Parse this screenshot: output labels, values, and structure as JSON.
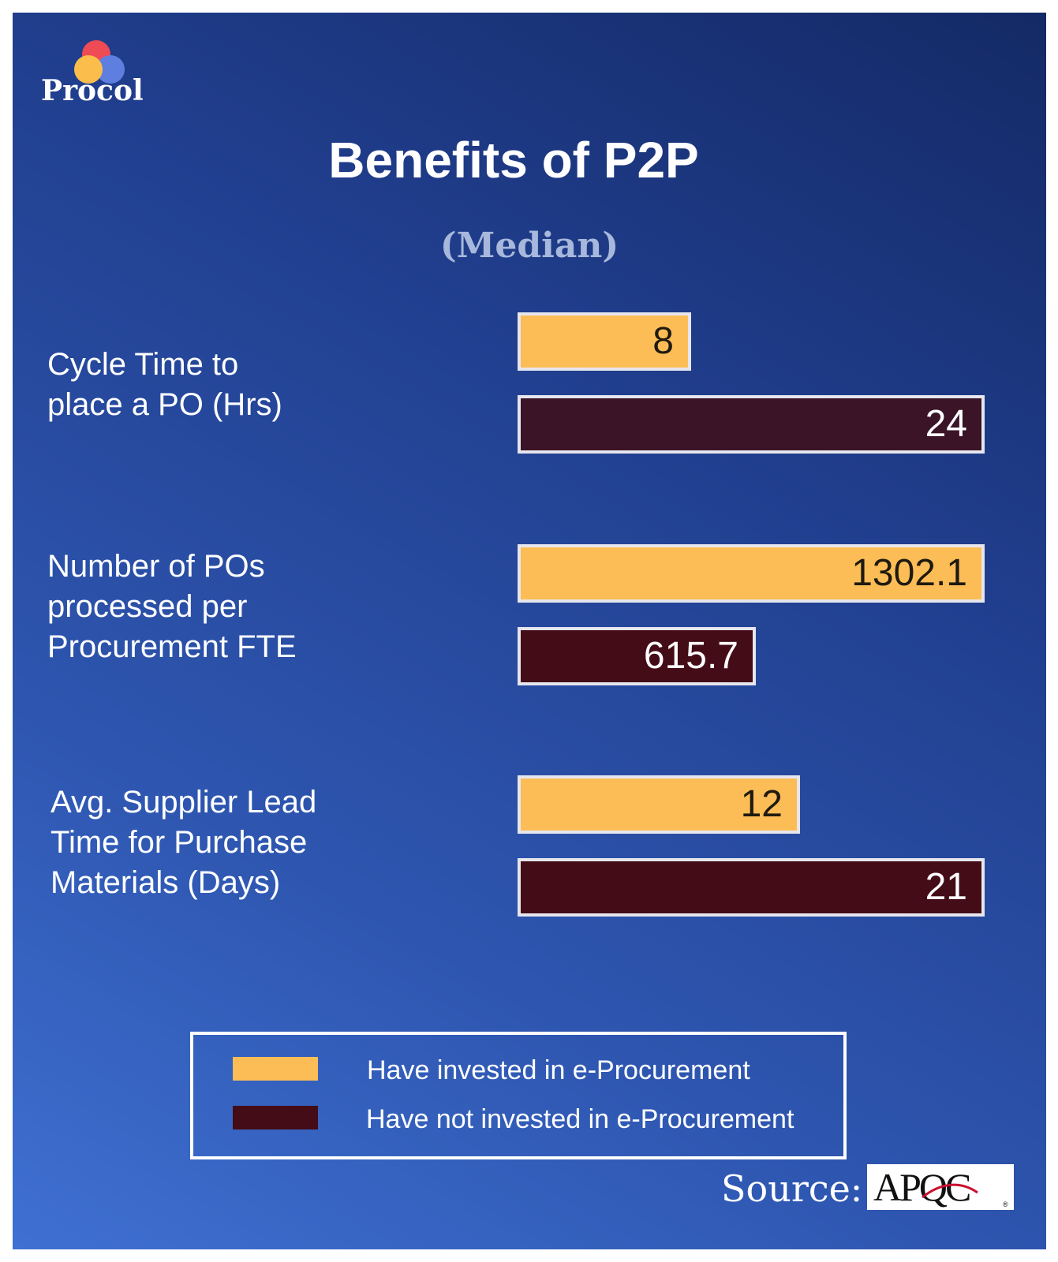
{
  "brand": {
    "name": "Procol"
  },
  "chart_data": {
    "type": "bar",
    "orientation": "horizontal",
    "title": "Benefits of P2P",
    "subtitle": "(Median)",
    "categories": [
      "Cycle Time to\nplace a PO (Hrs)",
      "Number of POs\nprocessed per\nProcurement FTE",
      "Avg. Supplier Lead\nTime for Purchase\nMaterials (Days)"
    ],
    "series": [
      {
        "name": "Have invested in e-Procurement",
        "color": "#fcbd56",
        "values": [
          8,
          1302.1,
          12
        ],
        "labels": [
          "8",
          "1302.1",
          "12"
        ]
      },
      {
        "name": "Have not invested in e-Procurement",
        "color": "#440c17",
        "values": [
          24,
          615.7,
          21
        ],
        "labels": [
          "24",
          "615.7",
          "21"
        ]
      }
    ],
    "legend_position": "bottom",
    "grid": false
  },
  "source": {
    "label": "Source:",
    "logo_text": "APQC"
  },
  "colors": {
    "invested": "#fcbd56",
    "not_invested": "#440c17",
    "not_invested_dark": "#3b1427"
  }
}
